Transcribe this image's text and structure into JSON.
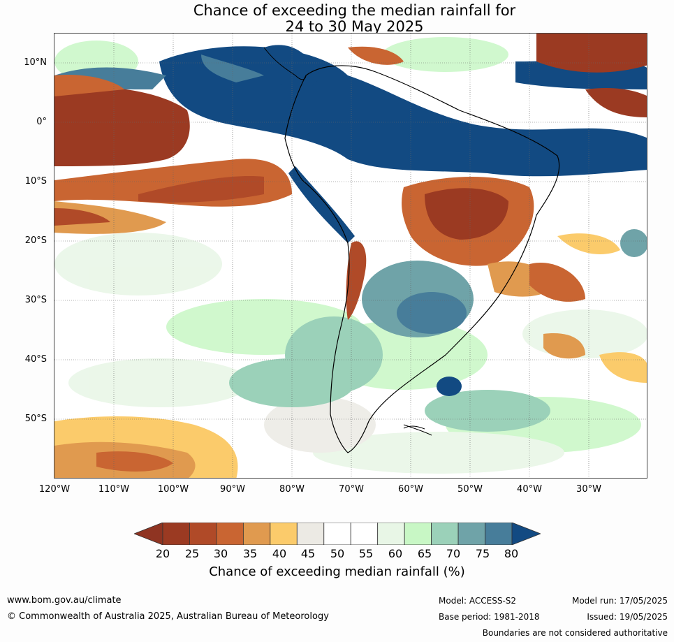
{
  "title_line1": "Chance of exceeding the median rainfall for",
  "title_line2": "24 to 30 May 2025",
  "lat_labels": [
    "10°N",
    "0°",
    "10°S",
    "20°S",
    "30°S",
    "40°S",
    "50°S"
  ],
  "lon_labels": [
    "120°W",
    "110°W",
    "100°W",
    "90°W",
    "80°W",
    "70°W",
    "60°W",
    "50°W",
    "40°W",
    "30°W"
  ],
  "colorbar": {
    "ticks": [
      "20",
      "25",
      "30",
      "35",
      "40",
      "45",
      "50",
      "55",
      "60",
      "65",
      "70",
      "75",
      "80"
    ],
    "colors": [
      "#9b3a22",
      "#b04a28",
      "#c96532",
      "#e09a4f",
      "#fbcb6b",
      "#eceae4",
      "#ffffff",
      "#ffffff",
      "#e8f6e6",
      "#c8f7c5",
      "#9bd1b9",
      "#6fa3a8",
      "#477d9a"
    ],
    "under_color": "#8f3422",
    "over_color": "#124a82",
    "label": "Chance of exceeding median rainfall (%)"
  },
  "footer": {
    "website": "www.bom.gov.au/climate",
    "copyright": "© Commonwealth of Australia 2025, Australian Bureau of Meteorology",
    "model": "Model: ACCESS-S2",
    "base_period": "Base period: 1981-2018",
    "model_run": "Model run: 17/05/2025",
    "issued": "Issued: 19/05/2025",
    "disclaimer": "Boundaries are not considered authoritative"
  }
}
